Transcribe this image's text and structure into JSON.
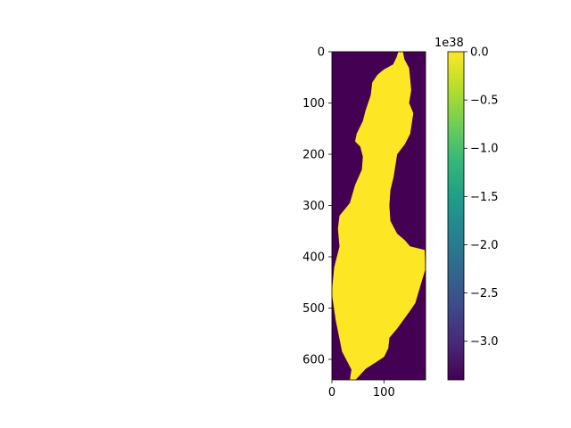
{
  "chart_data": {
    "type": "heatmap",
    "colormap": "viridis",
    "image_shape": [
      640,
      180
    ],
    "values_present": {
      "background": -3.4e+38,
      "region": 0.0
    },
    "colors": {
      "background": "#440154",
      "region": "#fde725"
    },
    "xlim": [
      0,
      180
    ],
    "ylim": [
      640,
      0
    ],
    "x_ticks": [
      0,
      100
    ],
    "x_tick_labels": [
      "0",
      "100"
    ],
    "y_ticks": [
      0,
      100,
      200,
      300,
      400,
      500,
      600
    ],
    "y_tick_labels": [
      "0",
      "100",
      "200",
      "300",
      "400",
      "500",
      "600"
    ],
    "region_outline": [
      [
        128,
        0
      ],
      [
        136,
        0
      ],
      [
        139,
        15
      ],
      [
        148,
        32
      ],
      [
        152,
        75
      ],
      [
        148,
        100
      ],
      [
        156,
        120
      ],
      [
        150,
        160
      ],
      [
        140,
        180
      ],
      [
        125,
        200
      ],
      [
        118,
        245
      ],
      [
        112,
        270
      ],
      [
        110,
        300
      ],
      [
        112,
        330
      ],
      [
        125,
        355
      ],
      [
        140,
        368
      ],
      [
        150,
        380
      ],
      [
        178,
        387
      ],
      [
        179,
        425
      ],
      [
        168,
        462
      ],
      [
        160,
        490
      ],
      [
        150,
        505
      ],
      [
        125,
        540
      ],
      [
        110,
        558
      ],
      [
        108,
        578
      ],
      [
        100,
        595
      ],
      [
        85,
        605
      ],
      [
        65,
        618
      ],
      [
        45,
        640
      ],
      [
        35,
        640
      ],
      [
        38,
        620
      ],
      [
        20,
        585
      ],
      [
        8,
        525
      ],
      [
        0,
        470
      ],
      [
        5,
        420
      ],
      [
        15,
        380
      ],
      [
        12,
        345
      ],
      [
        15,
        320
      ],
      [
        35,
        295
      ],
      [
        45,
        260
      ],
      [
        58,
        230
      ],
      [
        60,
        205
      ],
      [
        55,
        185
      ],
      [
        45,
        175
      ],
      [
        48,
        160
      ],
      [
        60,
        135
      ],
      [
        65,
        115
      ],
      [
        70,
        100
      ],
      [
        75,
        85
      ],
      [
        78,
        60
      ],
      [
        88,
        45
      ],
      [
        100,
        35
      ],
      [
        118,
        25
      ],
      [
        125,
        10
      ]
    ],
    "colorbar": {
      "vmin": -3.4e+38,
      "vmax": 0.0,
      "offset_text": "1e38",
      "ticks": [
        0.0,
        -5e+37,
        -1e+38,
        -1.5e+38,
        -2e+38,
        -2.5e+38,
        -3e+38
      ],
      "tick_labels": [
        "0.0",
        "−0.5",
        "−1.0",
        "−1.5",
        "−2.0",
        "−2.5",
        "−3.0"
      ],
      "gradient_colors": [
        "#440154",
        "#482878",
        "#3e4989",
        "#31688e",
        "#26828e",
        "#1f9e89",
        "#35b779",
        "#6ece58",
        "#b5de2b",
        "#fde725"
      ]
    }
  }
}
